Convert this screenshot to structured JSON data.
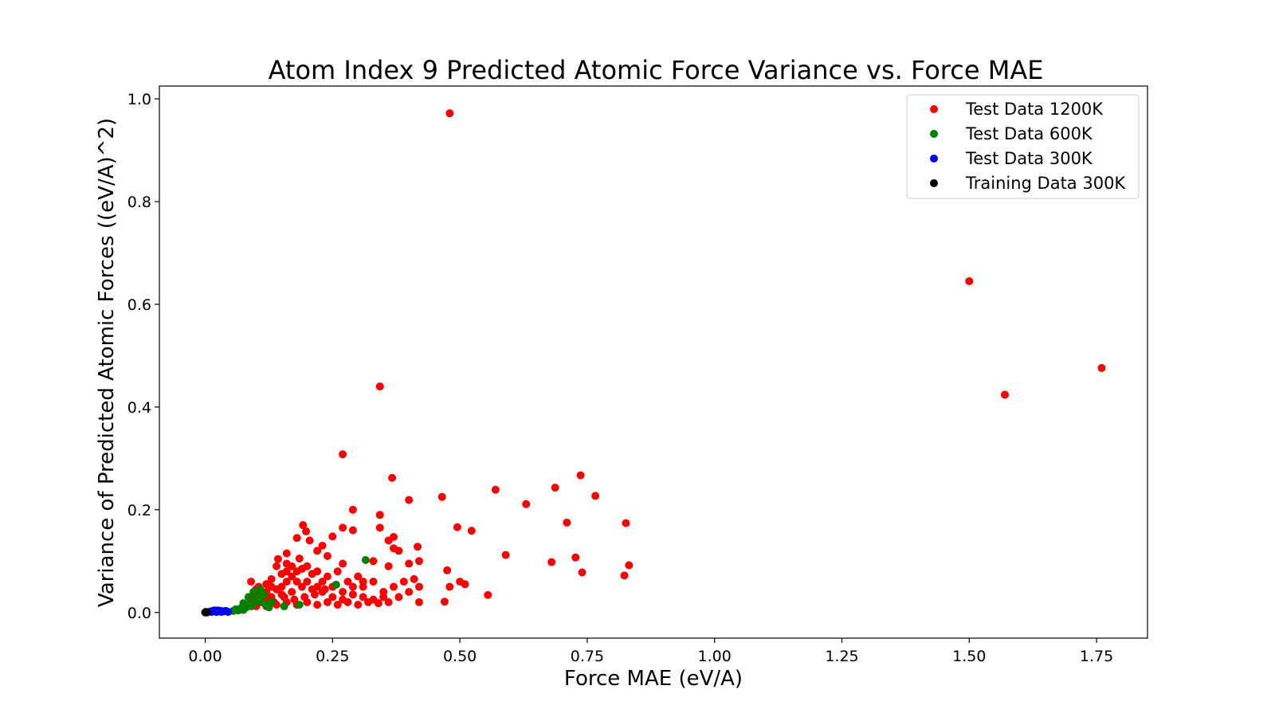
{
  "chart_data": {
    "type": "scatter",
    "title": "Atom Index 9 Predicted Atomic Force Variance vs. Force MAE",
    "xlabel": "Force MAE (eV/A)",
    "ylabel": "Variance of Predicted Atomic Forces ((eV/A)^2)",
    "xlim": [
      -0.09,
      1.85
    ],
    "ylim": [
      -0.05,
      1.025
    ],
    "xticks": [
      0.0,
      0.25,
      0.5,
      0.75,
      1.0,
      1.25,
      1.5,
      1.75
    ],
    "xtick_labels": [
      "0.00",
      "0.25",
      "0.50",
      "0.75",
      "1.00",
      "1.25",
      "1.50",
      "1.75"
    ],
    "yticks": [
      0.0,
      0.2,
      0.4,
      0.6,
      0.8,
      1.0
    ],
    "ytick_labels": [
      "0.0",
      "0.2",
      "0.4",
      "0.6",
      "0.8",
      "1.0"
    ],
    "grid": false,
    "legend_position": "top-right",
    "series": [
      {
        "name": "Test Data 1200K",
        "color": "#ff0000",
        "points": [
          [
            0.48,
            0.972
          ],
          [
            1.5,
            0.645
          ],
          [
            1.76,
            0.476
          ],
          [
            1.57,
            0.424
          ],
          [
            0.343,
            0.44
          ],
          [
            0.27,
            0.308
          ],
          [
            0.737,
            0.267
          ],
          [
            0.367,
            0.262
          ],
          [
            0.687,
            0.243
          ],
          [
            0.57,
            0.239
          ],
          [
            0.465,
            0.225
          ],
          [
            0.766,
            0.227
          ],
          [
            0.4,
            0.219
          ],
          [
            0.63,
            0.211
          ],
          [
            0.29,
            0.2
          ],
          [
            0.343,
            0.19
          ],
          [
            0.826,
            0.174
          ],
          [
            0.71,
            0.175
          ],
          [
            0.192,
            0.17
          ],
          [
            0.495,
            0.166
          ],
          [
            0.523,
            0.159
          ],
          [
            0.27,
            0.165
          ],
          [
            0.29,
            0.16
          ],
          [
            0.198,
            0.158
          ],
          [
            0.343,
            0.165
          ],
          [
            0.25,
            0.148
          ],
          [
            0.37,
            0.147
          ],
          [
            0.205,
            0.14
          ],
          [
            0.36,
            0.14
          ],
          [
            0.18,
            0.145
          ],
          [
            0.23,
            0.13
          ],
          [
            0.37,
            0.125
          ],
          [
            0.38,
            0.12
          ],
          [
            0.22,
            0.12
          ],
          [
            0.59,
            0.112
          ],
          [
            0.16,
            0.115
          ],
          [
            0.417,
            0.128
          ],
          [
            0.68,
            0.098
          ],
          [
            0.727,
            0.107
          ],
          [
            0.832,
            0.092
          ],
          [
            0.74,
            0.078
          ],
          [
            0.823,
            0.072
          ],
          [
            0.143,
            0.104
          ],
          [
            0.185,
            0.105
          ],
          [
            0.24,
            0.11
          ],
          [
            0.27,
            0.095
          ],
          [
            0.33,
            0.1
          ],
          [
            0.36,
            0.09
          ],
          [
            0.4,
            0.095
          ],
          [
            0.42,
            0.1
          ],
          [
            0.475,
            0.082
          ],
          [
            0.5,
            0.06
          ],
          [
            0.51,
            0.055
          ],
          [
            0.48,
            0.05
          ],
          [
            0.555,
            0.034
          ],
          [
            0.47,
            0.021
          ],
          [
            0.42,
            0.02
          ],
          [
            0.42,
            0.05
          ],
          [
            0.41,
            0.065
          ],
          [
            0.39,
            0.06
          ],
          [
            0.37,
            0.05
          ],
          [
            0.35,
            0.04
          ],
          [
            0.33,
            0.06
          ],
          [
            0.31,
            0.05
          ],
          [
            0.3,
            0.07
          ],
          [
            0.28,
            0.06
          ],
          [
            0.26,
            0.08
          ],
          [
            0.24,
            0.07
          ],
          [
            0.22,
            0.08
          ],
          [
            0.2,
            0.09
          ],
          [
            0.18,
            0.08
          ],
          [
            0.17,
            0.07
          ],
          [
            0.16,
            0.06
          ],
          [
            0.15,
            0.05
          ],
          [
            0.14,
            0.045
          ],
          [
            0.13,
            0.05
          ],
          [
            0.12,
            0.04
          ],
          [
            0.11,
            0.035
          ],
          [
            0.1,
            0.03
          ],
          [
            0.09,
            0.02
          ],
          [
            0.08,
            0.015
          ],
          [
            0.09,
            0.06
          ],
          [
            0.1,
            0.045
          ],
          [
            0.12,
            0.055
          ],
          [
            0.13,
            0.065
          ],
          [
            0.15,
            0.075
          ],
          [
            0.16,
            0.08
          ],
          [
            0.17,
            0.09
          ],
          [
            0.19,
            0.085
          ],
          [
            0.21,
            0.075
          ],
          [
            0.23,
            0.06
          ],
          [
            0.25,
            0.05
          ],
          [
            0.27,
            0.04
          ],
          [
            0.29,
            0.035
          ],
          [
            0.31,
            0.03
          ],
          [
            0.33,
            0.025
          ],
          [
            0.35,
            0.03
          ],
          [
            0.38,
            0.03
          ],
          [
            0.4,
            0.04
          ],
          [
            0.36,
            0.02
          ],
          [
            0.34,
            0.018
          ],
          [
            0.32,
            0.02
          ],
          [
            0.3,
            0.015
          ],
          [
            0.28,
            0.02
          ],
          [
            0.26,
            0.015
          ],
          [
            0.24,
            0.02
          ],
          [
            0.22,
            0.015
          ],
          [
            0.2,
            0.02
          ],
          [
            0.18,
            0.015
          ],
          [
            0.16,
            0.02
          ],
          [
            0.14,
            0.015
          ],
          [
            0.12,
            0.012
          ],
          [
            0.11,
            0.02
          ],
          [
            0.13,
            0.03
          ],
          [
            0.15,
            0.035
          ],
          [
            0.17,
            0.04
          ],
          [
            0.19,
            0.05
          ],
          [
            0.21,
            0.045
          ],
          [
            0.23,
            0.04
          ],
          [
            0.25,
            0.03
          ],
          [
            0.27,
            0.025
          ],
          [
            0.29,
            0.05
          ],
          [
            0.31,
            0.06
          ],
          [
            0.14,
            0.09
          ],
          [
            0.16,
            0.095
          ],
          [
            0.2,
            0.06
          ],
          [
            0.22,
            0.05
          ],
          [
            0.18,
            0.06
          ],
          [
            0.12,
            0.025
          ],
          [
            0.1,
            0.012
          ],
          [
            0.07,
            0.008
          ],
          [
            0.06,
            0.005
          ],
          [
            0.105,
            0.05
          ],
          [
            0.095,
            0.04
          ],
          [
            0.135,
            0.02
          ],
          [
            0.155,
            0.03
          ],
          [
            0.175,
            0.025
          ],
          [
            0.195,
            0.03
          ],
          [
            0.215,
            0.035
          ],
          [
            0.235,
            0.045
          ]
        ]
      },
      {
        "name": "Test Data 600K",
        "color": "#008000",
        "points": [
          [
            0.315,
            0.102
          ],
          [
            0.257,
            0.054
          ],
          [
            0.075,
            0.018
          ],
          [
            0.085,
            0.03
          ],
          [
            0.095,
            0.04
          ],
          [
            0.1,
            0.025
          ],
          [
            0.11,
            0.02
          ],
          [
            0.12,
            0.015
          ],
          [
            0.09,
            0.012
          ],
          [
            0.08,
            0.01
          ],
          [
            0.07,
            0.008
          ],
          [
            0.06,
            0.006
          ],
          [
            0.105,
            0.03
          ],
          [
            0.115,
            0.035
          ],
          [
            0.125,
            0.01
          ],
          [
            0.155,
            0.012
          ],
          [
            0.185,
            0.015
          ],
          [
            0.065,
            0.004
          ],
          [
            0.055,
            0.003
          ],
          [
            0.098,
            0.02
          ],
          [
            0.088,
            0.015
          ],
          [
            0.108,
            0.045
          ],
          [
            0.075,
            0.005
          ],
          [
            0.13,
            0.02
          ]
        ]
      },
      {
        "name": "Test Data 300K",
        "color": "#0000ff",
        "points": [
          [
            0.01,
            0.002
          ],
          [
            0.015,
            0.003
          ],
          [
            0.02,
            0.002
          ],
          [
            0.025,
            0.004
          ],
          [
            0.03,
            0.003
          ],
          [
            0.035,
            0.002
          ],
          [
            0.04,
            0.003
          ],
          [
            0.045,
            0.001
          ],
          [
            0.012,
            0.001
          ],
          [
            0.022,
            0.001
          ],
          [
            0.032,
            0.001
          ],
          [
            0.018,
            0.004
          ]
        ]
      },
      {
        "name": "Training Data 300K",
        "color": "#000000",
        "points": [
          [
            0.0,
            0.0
          ],
          [
            0.002,
            0.0005
          ],
          [
            0.004,
            0.0003
          ],
          [
            0.001,
            0.001
          ],
          [
            0.003,
            0.0
          ]
        ]
      }
    ]
  }
}
